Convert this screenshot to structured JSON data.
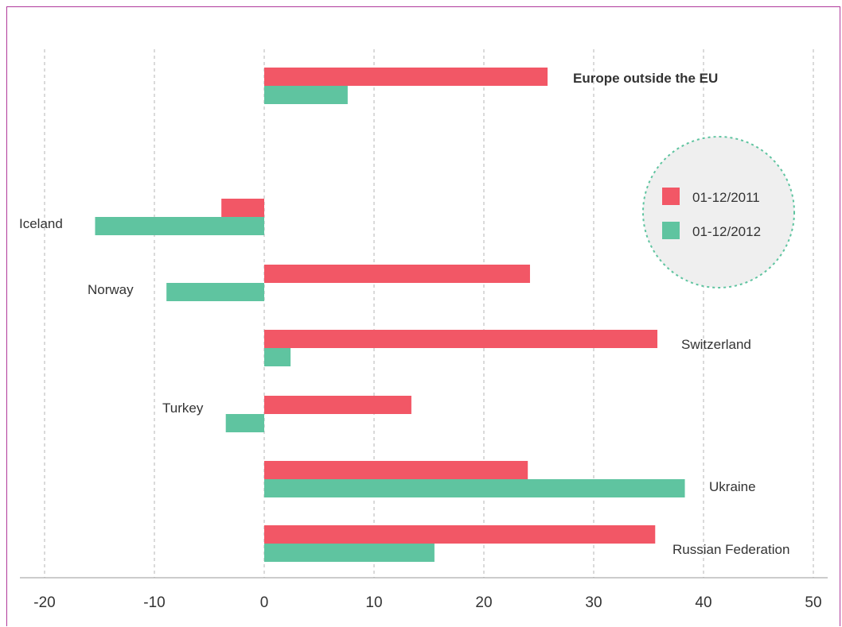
{
  "chart_data": {
    "type": "bar",
    "orientation": "horizontal",
    "categories": [
      "Europe outside the EU",
      "Iceland",
      "Norway",
      "Switzerland",
      "Turkey",
      "Ukraine",
      "Russian Federation"
    ],
    "series": [
      {
        "name": "01-12/2011",
        "color": "#f25766",
        "values": [
          25.8,
          -3.9,
          24.2,
          35.8,
          13.4,
          24.0,
          35.6
        ]
      },
      {
        "name": "01-12/2012",
        "color": "#5fc4a0",
        "values": [
          7.6,
          -15.4,
          -8.9,
          2.4,
          -3.5,
          38.3,
          15.5
        ]
      }
    ],
    "xlim": [
      -20,
      50
    ],
    "xticks": [
      "-20",
      "-10",
      "0",
      "10",
      "20",
      "30",
      "40",
      "50"
    ],
    "grid": "vertical-dashed",
    "legend_position": "right",
    "title": "",
    "xlabel": "",
    "ylabel": ""
  }
}
